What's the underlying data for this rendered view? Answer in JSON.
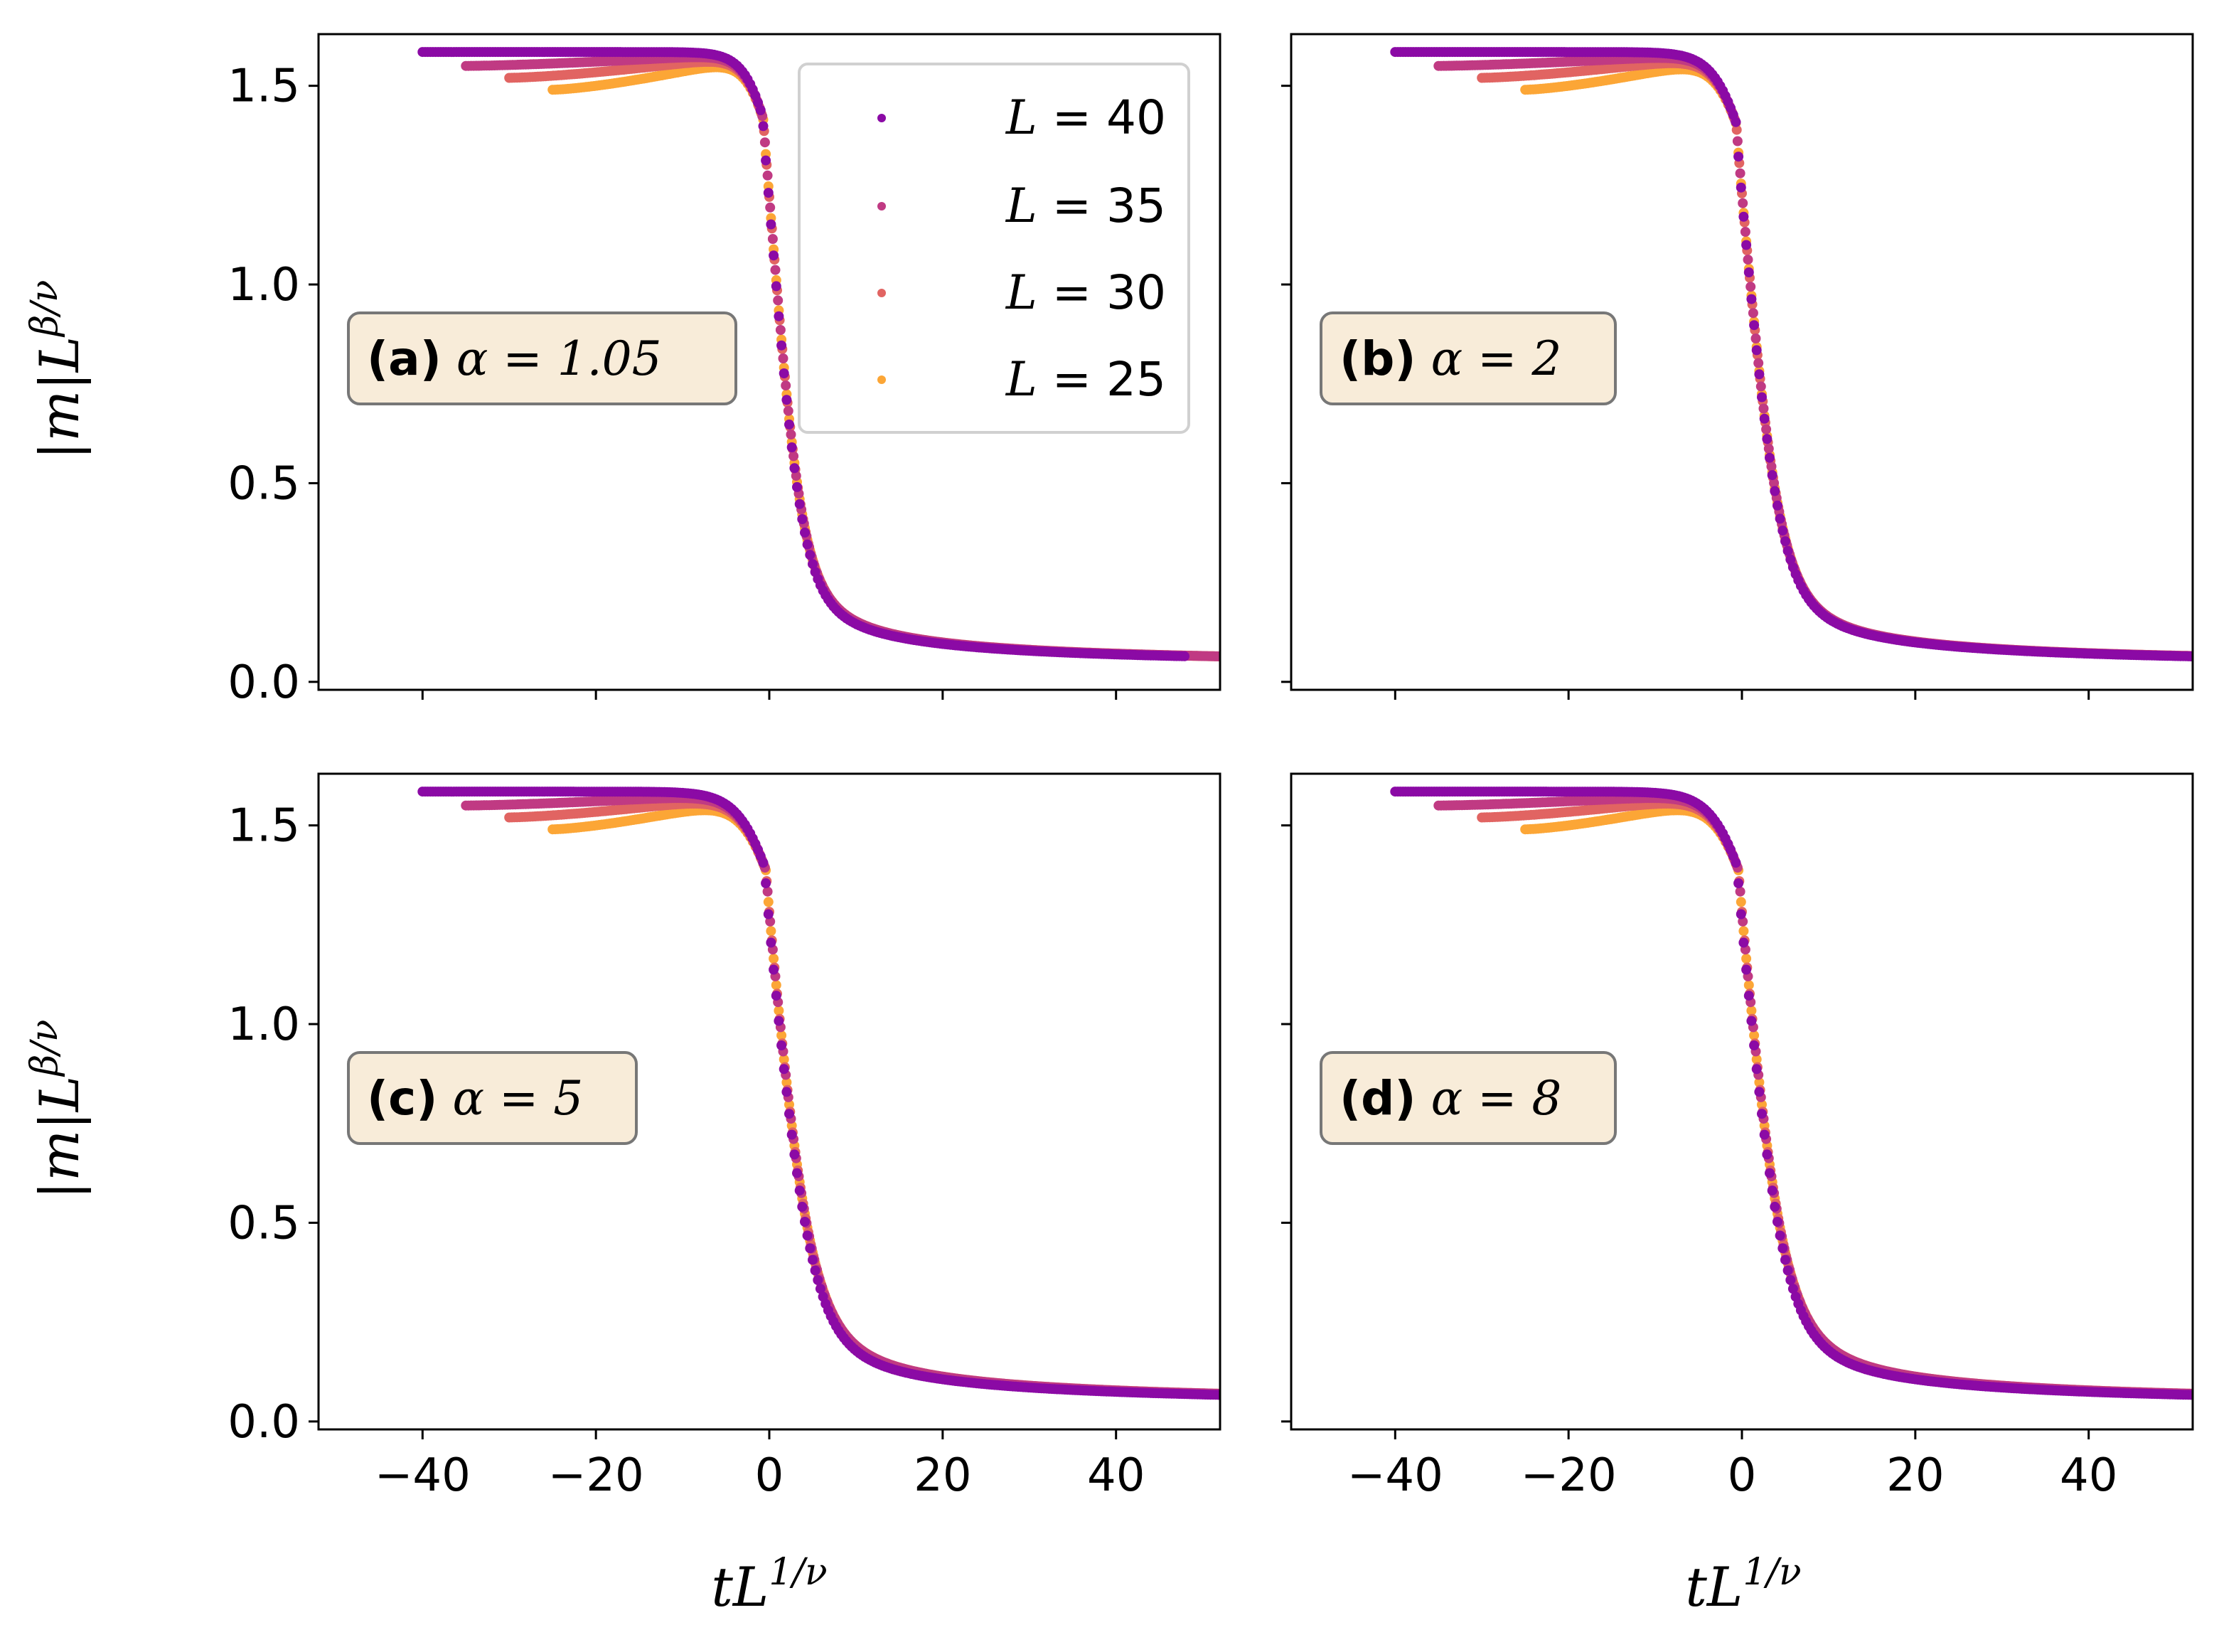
{
  "chart_data": {
    "type": "scatter",
    "layout": "2x2 grid, shared x and y axes",
    "xlabel": "tL",
    "xlabel_exponent": "1/ν",
    "ylabel": "|m|L",
    "ylabel_exponent": "β/ν",
    "xlim": [
      -52,
      52
    ],
    "ylim": [
      -0.02,
      1.63
    ],
    "xticks": [
      -40,
      -20,
      0,
      20,
      40
    ],
    "xtick_labels": [
      "−40",
      "−20",
      "0",
      "20",
      "40"
    ],
    "yticks": [
      0.0,
      0.5,
      1.0,
      1.5
    ],
    "ytick_labels": [
      "0.0",
      "0.5",
      "1.0",
      "1.5"
    ],
    "grid": false,
    "legend": {
      "placement": "top-right of panel (a)",
      "entries": [
        {
          "label_var": "L",
          "label_eq": " = ",
          "label_val": "40",
          "color": "#8b0aa5"
        },
        {
          "label_var": "L",
          "label_eq": " = ",
          "label_val": "35",
          "color": "#c03a83"
        },
        {
          "label_var": "L",
          "label_eq": " = ",
          "label_val": "30",
          "color": "#e16462"
        },
        {
          "label_var": "L",
          "label_eq": " = ",
          "label_val": "25",
          "color": "#fca636"
        }
      ]
    },
    "colors": {
      "L40": "#8b0aa5",
      "L35": "#c03a83",
      "L30": "#e16462",
      "L25": "#fca636"
    },
    "panels": [
      {
        "tag": "(a)",
        "param_text": "α = 1.05",
        "series": [
          {
            "name": "L = 25",
            "x_min": -25,
            "x_max": 52,
            "low_plateau": 1.49,
            "high_plateau": 1.585,
            "x_center": 0.6,
            "width": 1.6,
            "tail_amp": 1.3,
            "tail_exp": 1.0,
            "tail_shift": 2.0
          },
          {
            "name": "L = 30",
            "x_min": -30,
            "x_max": 52,
            "low_plateau": 1.52,
            "high_plateau": 1.585,
            "x_center": 0.6,
            "width": 1.6,
            "tail_amp": 1.3,
            "tail_exp": 1.0,
            "tail_shift": 2.0
          },
          {
            "name": "L = 35",
            "x_min": -35,
            "x_max": 52,
            "low_plateau": 1.55,
            "high_plateau": 1.585,
            "x_center": 0.6,
            "width": 1.6,
            "tail_amp": 1.3,
            "tail_exp": 1.0,
            "tail_shift": 2.0
          },
          {
            "name": "L = 40",
            "x_min": -40,
            "x_max": 48,
            "low_plateau": 1.585,
            "high_plateau": 1.585,
            "x_center": 0.6,
            "width": 1.6,
            "tail_amp": 1.22,
            "tail_exp": 1.0,
            "tail_shift": 2.0
          }
        ]
      },
      {
        "tag": "(b)",
        "param_text": "α = 2",
        "series": [
          {
            "name": "L = 25",
            "x_min": -25,
            "x_max": 52,
            "low_plateau": 1.49,
            "high_plateau": 1.585,
            "x_center": 0.7,
            "width": 1.9,
            "tail_amp": 1.35,
            "tail_exp": 1.0,
            "tail_shift": 2.0
          },
          {
            "name": "L = 30",
            "x_min": -30,
            "x_max": 52,
            "low_plateau": 1.52,
            "high_plateau": 1.585,
            "x_center": 0.7,
            "width": 1.9,
            "tail_amp": 1.35,
            "tail_exp": 1.0,
            "tail_shift": 2.0
          },
          {
            "name": "L = 35",
            "x_min": -35,
            "x_max": 52,
            "low_plateau": 1.55,
            "high_plateau": 1.585,
            "x_center": 0.7,
            "width": 1.9,
            "tail_amp": 1.35,
            "tail_exp": 1.0,
            "tail_shift": 2.0
          },
          {
            "name": "L = 40",
            "x_min": -40,
            "x_max": 52,
            "low_plateau": 1.585,
            "high_plateau": 1.585,
            "x_center": 0.7,
            "width": 1.9,
            "tail_amp": 1.3,
            "tail_exp": 1.0,
            "tail_shift": 2.0
          }
        ]
      },
      {
        "tag": "(c)",
        "param_text": "α = 5",
        "series": [
          {
            "name": "L = 25",
            "x_min": -25,
            "x_max": 52,
            "low_plateau": 1.49,
            "high_plateau": 1.585,
            "x_center": 0.8,
            "width": 2.1,
            "tail_amp": 1.6,
            "tail_exp": 1.0,
            "tail_shift": 2.0
          },
          {
            "name": "L = 30",
            "x_min": -30,
            "x_max": 52,
            "low_plateau": 1.52,
            "high_plateau": 1.585,
            "x_center": 0.8,
            "width": 2.1,
            "tail_amp": 1.6,
            "tail_exp": 1.0,
            "tail_shift": 2.0
          },
          {
            "name": "L = 35",
            "x_min": -35,
            "x_max": 52,
            "low_plateau": 1.55,
            "high_plateau": 1.585,
            "x_center": 0.8,
            "width": 2.1,
            "tail_amp": 1.6,
            "tail_exp": 1.0,
            "tail_shift": 2.0
          },
          {
            "name": "L = 40",
            "x_min": -40,
            "x_max": 52,
            "low_plateau": 1.585,
            "high_plateau": 1.585,
            "x_center": 0.8,
            "width": 2.1,
            "tail_amp": 1.45,
            "tail_exp": 1.0,
            "tail_shift": 2.0
          }
        ]
      },
      {
        "tag": "(d)",
        "param_text": "α = 8",
        "series": [
          {
            "name": "L = 25",
            "x_min": -25,
            "x_max": 52,
            "low_plateau": 1.49,
            "high_plateau": 1.585,
            "x_center": 0.8,
            "width": 2.1,
            "tail_amp": 1.6,
            "tail_exp": 1.0,
            "tail_shift": 2.0
          },
          {
            "name": "L = 30",
            "x_min": -30,
            "x_max": 52,
            "low_plateau": 1.52,
            "high_plateau": 1.585,
            "x_center": 0.8,
            "width": 2.1,
            "tail_amp": 1.6,
            "tail_exp": 1.0,
            "tail_shift": 2.0
          },
          {
            "name": "L = 35",
            "x_min": -35,
            "x_max": 52,
            "low_plateau": 1.55,
            "high_plateau": 1.585,
            "x_center": 0.8,
            "width": 2.1,
            "tail_amp": 1.6,
            "tail_exp": 1.0,
            "tail_shift": 2.0
          },
          {
            "name": "L = 40",
            "x_min": -40,
            "x_max": 52,
            "low_plateau": 1.585,
            "high_plateau": 1.585,
            "x_center": 0.8,
            "width": 2.1,
            "tail_amp": 1.45,
            "tail_exp": 1.0,
            "tail_shift": 2.0
          }
        ]
      }
    ]
  }
}
